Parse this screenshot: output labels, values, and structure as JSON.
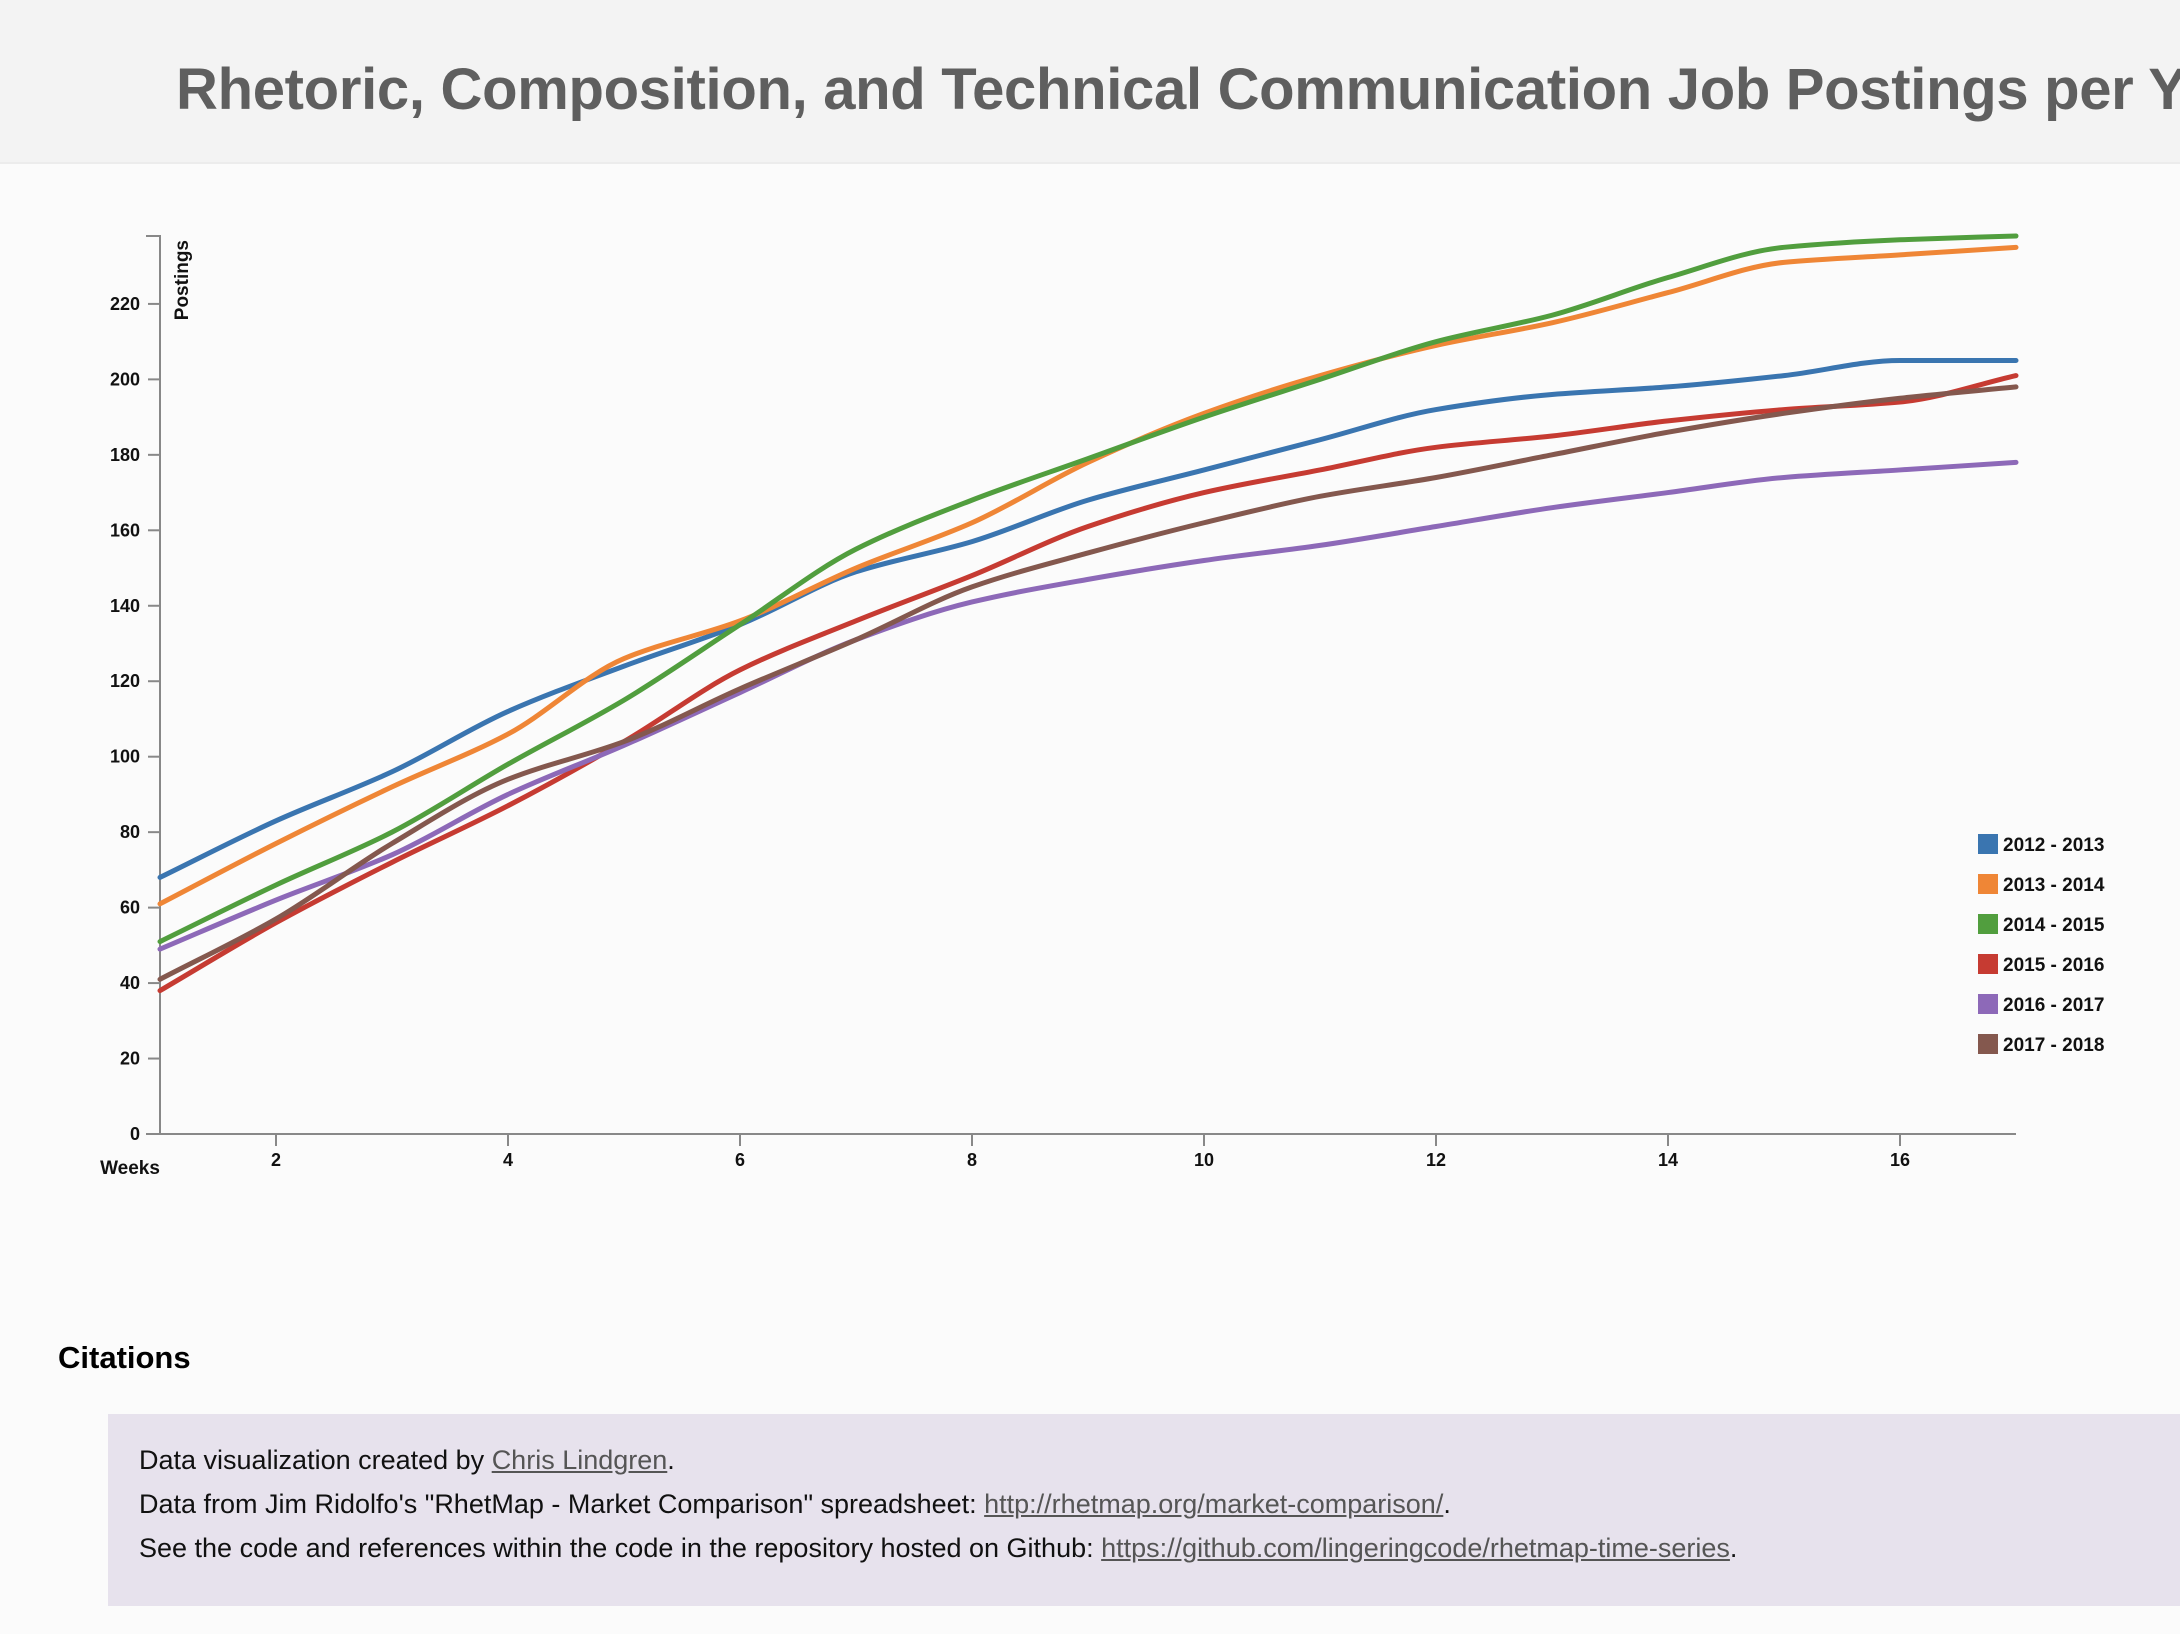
{
  "header": {
    "title": "Rhetoric, Composition, and Technical Communication Job Postings per Year"
  },
  "chart_data": {
    "type": "line",
    "title": "Rhetoric, Composition, and Technical Communication Job Postings per Year",
    "xlabel": "Weeks",
    "ylabel": "Postings",
    "xlim": [
      1,
      17
    ],
    "ylim": [
      0,
      238
    ],
    "x_ticks": [
      2,
      4,
      6,
      8,
      10,
      12,
      14,
      16
    ],
    "y_ticks": [
      0,
      20,
      40,
      60,
      80,
      100,
      120,
      140,
      160,
      180,
      200,
      220
    ],
    "grid": false,
    "legend_position": "right",
    "x": [
      1,
      2,
      3,
      4,
      5,
      6,
      7,
      8,
      9,
      10,
      11,
      12,
      13,
      14,
      15,
      16,
      17
    ],
    "series": [
      {
        "name": "2012 - 2013",
        "color": "#3a75b0",
        "values": [
          68,
          83,
          96,
          112,
          124,
          135,
          149,
          157,
          168,
          176,
          184,
          192,
          196,
          198,
          201,
          205,
          205
        ]
      },
      {
        "name": "2013 - 2014",
        "color": "#ef8636",
        "values": [
          61,
          77,
          92,
          106,
          126,
          136,
          150,
          162,
          178,
          191,
          201,
          209,
          215,
          223,
          231,
          233,
          235
        ]
      },
      {
        "name": "2014 - 2015",
        "color": "#519e3e",
        "values": [
          51,
          66,
          80,
          98,
          115,
          135,
          155,
          168,
          179,
          190,
          200,
          210,
          217,
          227,
          235,
          237,
          238
        ]
      },
      {
        "name": "2015 - 2016",
        "color": "#c63b32",
        "values": [
          38,
          56,
          72,
          87,
          104,
          123,
          136,
          148,
          161,
          170,
          176,
          182,
          185,
          189,
          192,
          194,
          201
        ]
      },
      {
        "name": "2016 - 2017",
        "color": "#8d69b8",
        "values": [
          49,
          62,
          74,
          90,
          103,
          117,
          131,
          141,
          147,
          152,
          156,
          161,
          166,
          170,
          174,
          176,
          178
        ]
      },
      {
        "name": "2017 - 2018",
        "color": "#84584e",
        "values": [
          41,
          57,
          77,
          94,
          104,
          118,
          131,
          145,
          154,
          162,
          169,
          174,
          180,
          186,
          191,
          195,
          198
        ]
      }
    ]
  },
  "citations": {
    "heading": "Citations",
    "line1": {
      "prefix": "Data visualization created by ",
      "link": "Chris Lindgren",
      "suffix": "."
    },
    "line2": {
      "prefix": "Data from Jim Ridolfo's \"RhetMap - Market Comparison\" spreadsheet: ",
      "link": "http://rhetmap.org/market-comparison/",
      "suffix": "."
    },
    "line3": {
      "prefix": "See the code and references within the code in the repository hosted on Github: ",
      "link": "https://github.com/lingeringcode/rhetmap-time-series",
      "suffix": "."
    }
  }
}
